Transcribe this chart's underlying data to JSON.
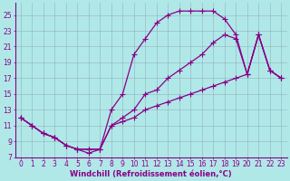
{
  "xlabel": "Windchill (Refroidissement éolien,°C)",
  "bg_color": "#b0e8e8",
  "grid_color": "#8899aa",
  "line_color": "#880088",
  "xlim": [
    -0.5,
    23.5
  ],
  "ylim": [
    7,
    26.5
  ],
  "xticks": [
    0,
    1,
    2,
    3,
    4,
    5,
    6,
    7,
    8,
    9,
    10,
    11,
    12,
    13,
    14,
    15,
    16,
    17,
    18,
    19,
    20,
    21,
    22,
    23
  ],
  "yticks": [
    7,
    9,
    11,
    13,
    15,
    17,
    19,
    21,
    23,
    25
  ],
  "curve_top_x": [
    0,
    1,
    2,
    3,
    4,
    5,
    6,
    7,
    8,
    9,
    10,
    11,
    12,
    13,
    14,
    15,
    16,
    17,
    18,
    19,
    20,
    21,
    22,
    23
  ],
  "curve_top_y": [
    12,
    11,
    10,
    9.5,
    8.5,
    8.0,
    8.0,
    8.0,
    13,
    15,
    20,
    22,
    24,
    25,
    25.5,
    25.5,
    25.5,
    25.5,
    24.5,
    22.5,
    17.5,
    22.5,
    18,
    17
  ],
  "curve_mid_x": [
    0,
    1,
    2,
    3,
    4,
    5,
    6,
    7,
    8,
    9,
    10,
    11,
    12,
    13,
    14,
    15,
    16,
    17,
    18,
    19,
    20,
    21,
    22,
    23
  ],
  "curve_mid_y": [
    12,
    11,
    10,
    9.5,
    8.5,
    8.0,
    8.0,
    8.0,
    11,
    12,
    13,
    15,
    15.5,
    17,
    18,
    19,
    20,
    21.5,
    22.5,
    22,
    17.5,
    22.5,
    18,
    17
  ],
  "curve_bot_x": [
    0,
    1,
    2,
    3,
    4,
    5,
    6,
    7,
    8,
    9,
    10,
    11,
    12,
    13,
    14,
    15,
    16,
    17,
    18,
    19,
    20,
    21,
    22,
    23
  ],
  "curve_bot_y": [
    12,
    11,
    10,
    9.5,
    8.5,
    8.0,
    7.5,
    8.0,
    11,
    11.5,
    12,
    13,
    13.5,
    14,
    14.5,
    15,
    15.5,
    16,
    16.5,
    17,
    17.5,
    22.5,
    18,
    17
  ],
  "marker": "+",
  "markersize": 4,
  "linewidth": 0.9,
  "xlabel_fontsize": 6,
  "tick_fontsize": 5.5,
  "xlabel_color": "#880088",
  "tick_color": "#880088",
  "spine_color": "#880088"
}
